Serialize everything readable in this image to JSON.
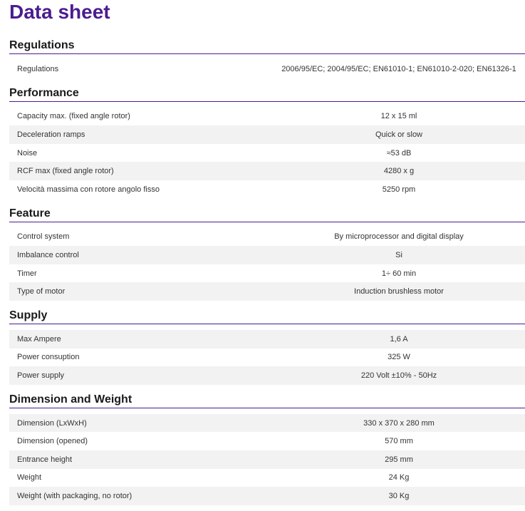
{
  "header": {
    "title": "Data sheet"
  },
  "sections": [
    {
      "heading": "Regulations",
      "rows": [
        [
          "Regulations",
          "2006/95/EC; 2004/95/EC; EN61010-1; EN61010-2-020; EN61326-1"
        ]
      ]
    },
    {
      "heading": "Performance",
      "rows": [
        [
          "Capacity max. (fixed angle rotor)",
          "12 x 15 ml"
        ],
        [
          "Deceleration ramps",
          "Quick or slow"
        ],
        [
          "Noise",
          "≈53 dB"
        ],
        [
          "RCF max (fixed angle rotor)",
          "4280 x g"
        ],
        [
          "Velocità massima con rotore angolo fisso",
          "5250 rpm"
        ]
      ]
    },
    {
      "heading": "Feature",
      "rows": [
        [
          "Control system",
          "By microprocessor and digital display"
        ],
        [
          "Imbalance control",
          "Si"
        ],
        [
          "Timer",
          "1÷ 60 min"
        ],
        [
          "Type of motor",
          "Induction brushless motor"
        ]
      ]
    },
    {
      "heading": "Supply",
      "rows": [
        [
          "Max Ampere",
          "1,6 A"
        ],
        [
          "Power consuption",
          "325 W"
        ],
        [
          "Power supply",
          "220 Volt ±10% - 50Hz"
        ]
      ]
    },
    {
      "heading": "Dimension and Weight",
      "rows": [
        [
          "Dimension (LxWxH)",
          "330 x 370 x 280 mm"
        ],
        [
          "Dimension (opened)",
          "570 mm"
        ],
        [
          "Entrance height",
          "295 mm"
        ],
        [
          "Weight",
          "24 Kg"
        ],
        [
          "Weight (with packaging, no rotor)",
          "30 Kg"
        ]
      ]
    }
  ]
}
